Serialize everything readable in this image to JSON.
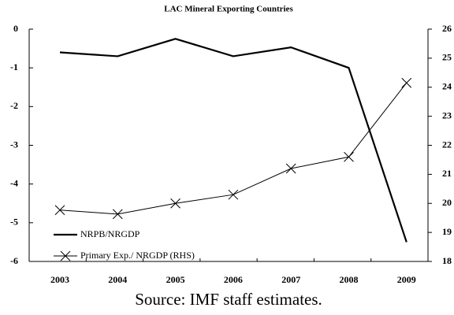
{
  "chart_data": {
    "type": "line",
    "subtitle": "LAC Mineral Exporting Countries",
    "categories": [
      "2003",
      "2004",
      "2005",
      "2006",
      "2007",
      "2008",
      "2009"
    ],
    "series": [
      {
        "name": "NRPB/NRGDP",
        "color": "#000000",
        "values": [
          -0.6,
          -0.7,
          -0.25,
          -0.7,
          -0.47,
          -1.0,
          -5.5
        ]
      },
      {
        "name": "Primary Exp./ NRGDP (RHS)",
        "color": "#000000",
        "axis": "y2",
        "marker": "x",
        "values": [
          19.77,
          19.63,
          20.0,
          20.3,
          21.2,
          21.6,
          24.15
        ]
      }
    ],
    "ylim": [
      -6,
      0
    ],
    "yticks": [
      0,
      -1,
      -2,
      -3,
      -4,
      -5,
      -6
    ],
    "y2lim": [
      18,
      26
    ],
    "y2ticks": [
      26,
      25,
      24,
      23,
      22,
      21,
      20,
      19,
      18
    ],
    "source": "Source: IMF staff estimates."
  }
}
